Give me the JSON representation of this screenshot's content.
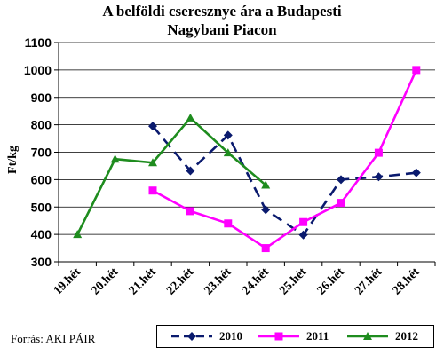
{
  "chart_data": {
    "type": "line",
    "title": "A belföldi cseresznye ára a Budapesti Nagybani Piacon",
    "title_lines": [
      "A belföldi cseresznye ára a Budapesti",
      "Nagybani Piacon"
    ],
    "ylabel": "Ft/kg",
    "xlabel": "",
    "categories": [
      "19.hét",
      "20.hét",
      "21.hét",
      "22.hét",
      "23.hét",
      "24.hét",
      "25.hét",
      "26.hét",
      "27.hét",
      "28.hét"
    ],
    "ylim": [
      300,
      1100
    ],
    "yticks": [
      300,
      400,
      500,
      600,
      700,
      800,
      900,
      1000,
      1100
    ],
    "grid": "horizontal",
    "legend_position": "bottom-right",
    "series": [
      {
        "name": "2010",
        "color": "#0a1a6e",
        "dash": true,
        "marker": "diamond",
        "values": [
          null,
          null,
          795,
          632,
          762,
          490,
          398,
          600,
          610,
          625
        ]
      },
      {
        "name": "2011",
        "color": "#ff00ff",
        "dash": false,
        "marker": "square",
        "values": [
          null,
          null,
          560,
          485,
          440,
          350,
          445,
          515,
          698,
          1000
        ]
      },
      {
        "name": "2012",
        "color": "#1e8c1e",
        "dash": false,
        "marker": "triangle",
        "values": [
          400,
          675,
          662,
          825,
          698,
          580,
          null,
          null,
          null,
          null
        ]
      }
    ]
  },
  "source": "Forrás: AKI PÁIR"
}
